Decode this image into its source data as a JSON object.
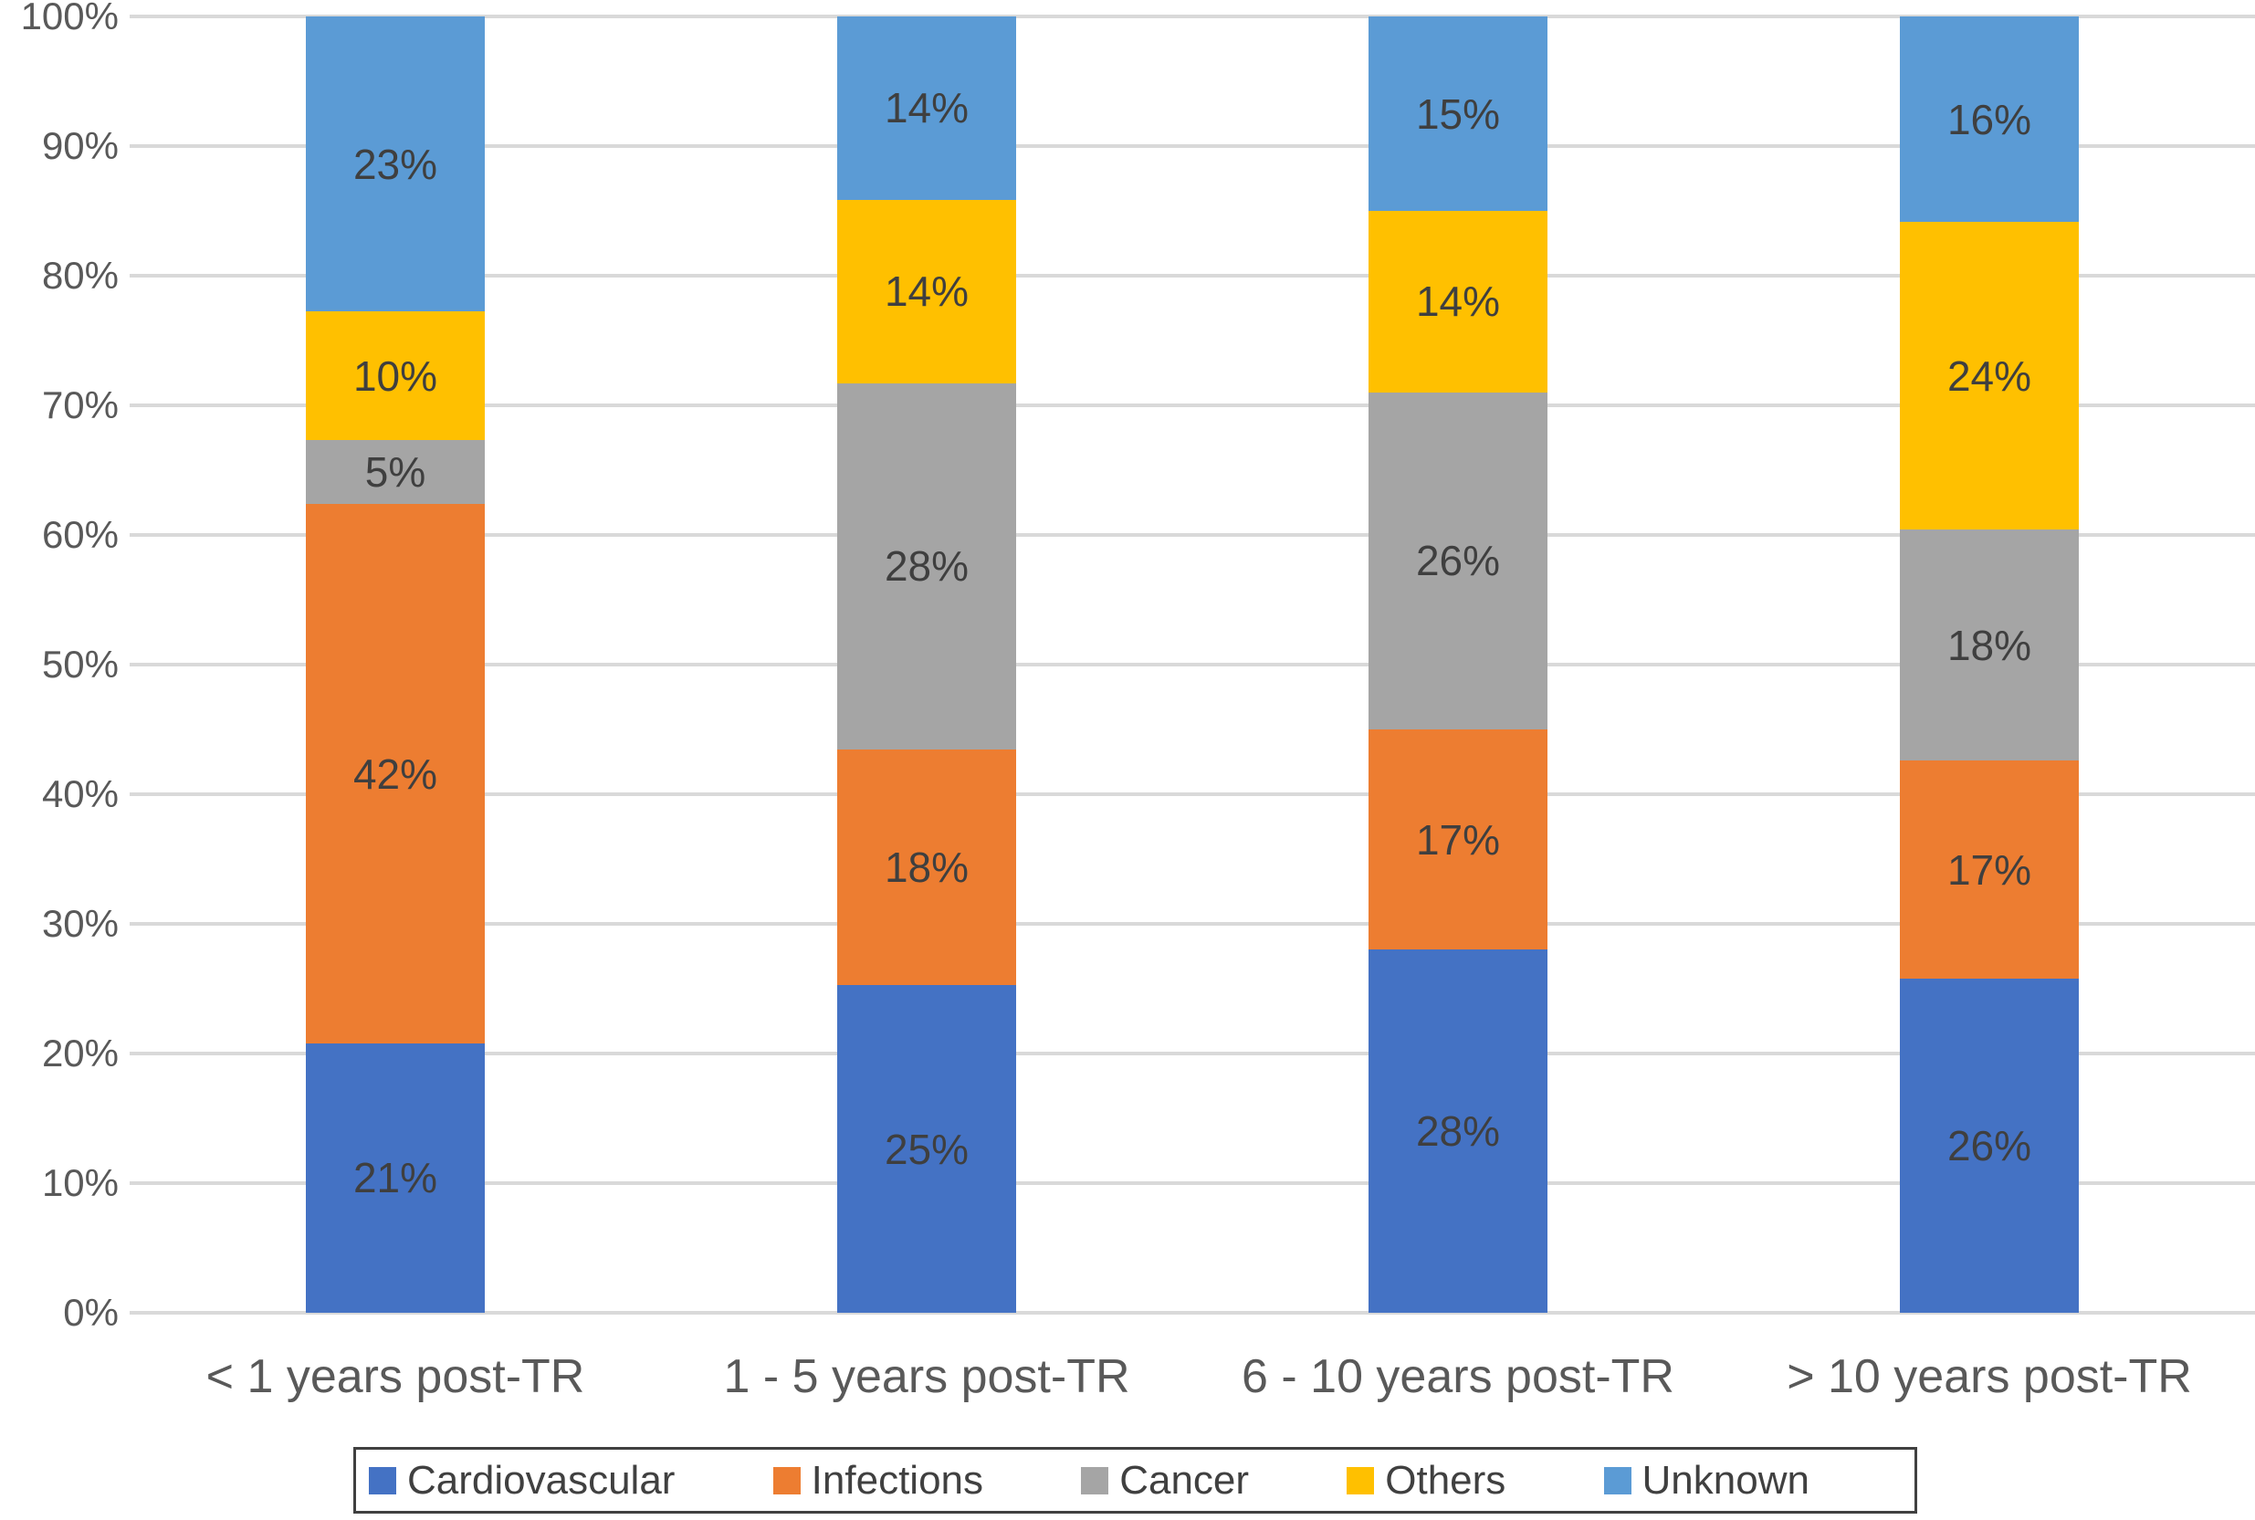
{
  "chart_data": {
    "type": "bar",
    "stacked": true,
    "percent_stacked": true,
    "title": "",
    "xlabel": "",
    "ylabel": "",
    "categories": [
      "< 1 years post-TR",
      "1 - 5 years post-TR",
      "6 - 10 years post-TR",
      "> 10 years post-TR"
    ],
    "series": [
      {
        "name": "Cardiovascular",
        "color": "#4472C4",
        "values": [
          21,
          25,
          28,
          26
        ]
      },
      {
        "name": "Infections",
        "color": "#ED7D31",
        "values": [
          42,
          18,
          17,
          17
        ]
      },
      {
        "name": "Cancer",
        "color": "#A5A5A5",
        "values": [
          5,
          28,
          26,
          18
        ]
      },
      {
        "name": "Others",
        "color": "#FFC000",
        "values": [
          10,
          14,
          14,
          24
        ]
      },
      {
        "name": "Unknown",
        "color": "#5B9BD5",
        "values": [
          23,
          14,
          15,
          16
        ]
      }
    ],
    "data_label_suffix": "%",
    "y_ticks": [
      "0%",
      "10%",
      "20%",
      "30%",
      "40%",
      "50%",
      "60%",
      "70%",
      "80%",
      "90%",
      "100%"
    ],
    "ylim": [
      0,
      100
    ],
    "grid": true,
    "gridline_color": "#D9D9D9",
    "axis_text_color": "#595959",
    "data_label_color": "#3F3F3F",
    "legend_position": "bottom",
    "legend_border_color": "#404040"
  }
}
